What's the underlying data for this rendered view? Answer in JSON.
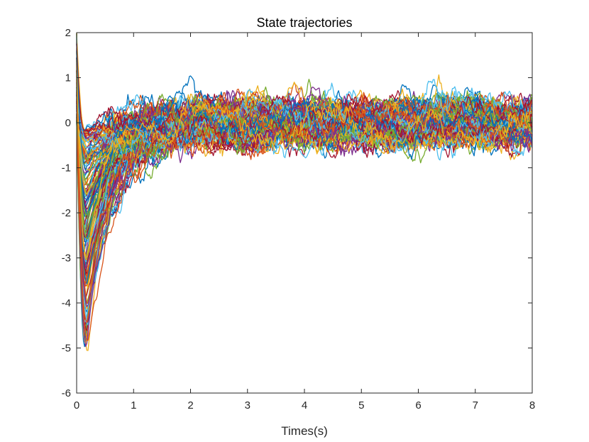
{
  "chart_data": {
    "type": "line",
    "title": "State trajectories",
    "xlabel": "Times(s)",
    "ylabel": "",
    "xlim": [
      0,
      8
    ],
    "ylim": [
      -6,
      2
    ],
    "grid": false,
    "legend": "none",
    "x_ticks": [
      0,
      1,
      2,
      3,
      4,
      5,
      6,
      7,
      8
    ],
    "y_ticks": [
      -6,
      -5,
      -4,
      -3,
      -2,
      -1,
      0,
      1,
      2
    ],
    "trajectory_count": 150,
    "initial_value_range": [
      0.0,
      2.0
    ],
    "minimum_time_s": 0.17,
    "minimum_value_range": [
      -5.15,
      -0.2
    ],
    "steady_state_band": [
      -0.7,
      0.75
    ],
    "settling_time_s": 1.8,
    "series_colors": [
      "#0072BD",
      "#D95319",
      "#EDB120",
      "#7E2F8E",
      "#77AC30",
      "#4DBEEE",
      "#A2142F"
    ]
  }
}
